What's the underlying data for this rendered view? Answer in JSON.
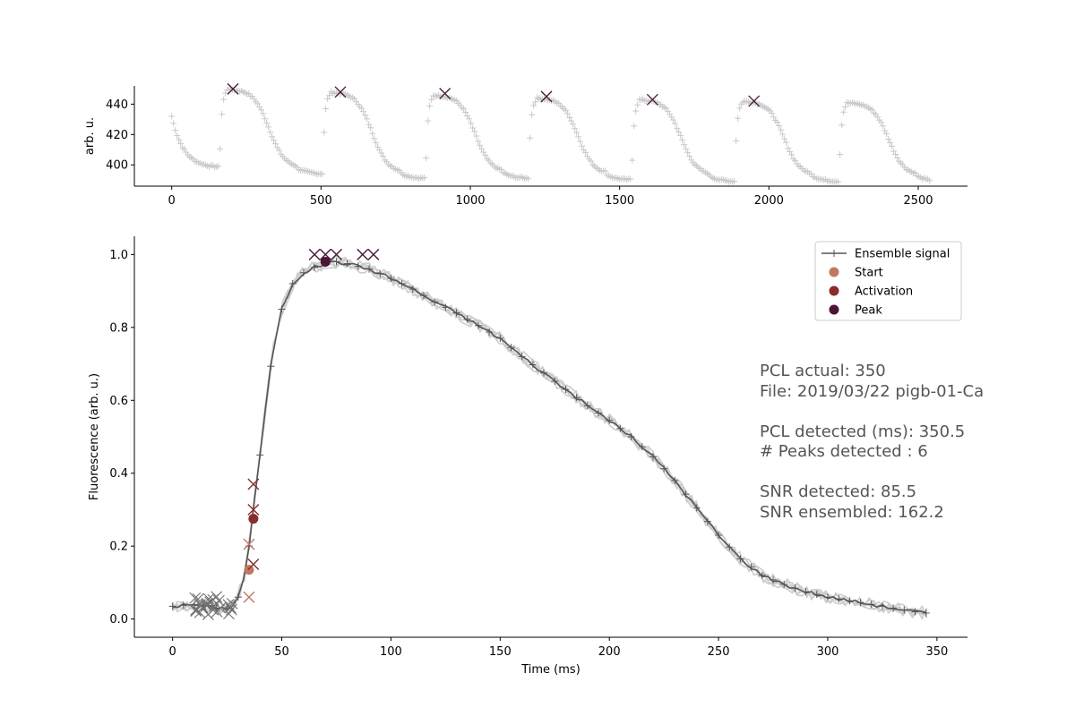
{
  "chart_data": [
    {
      "type": "line",
      "title": "",
      "xlabel": "",
      "ylabel": "arb. u.",
      "xlim": [
        -125,
        2665
      ],
      "ylim": [
        386,
        452
      ],
      "x_ticks": [
        0,
        500,
        1000,
        1500,
        2000,
        2500
      ],
      "x_tick_labels": [
        "0",
        "500",
        "1000",
        "1500",
        "2000",
        "2500"
      ],
      "y_ticks": [
        400,
        420,
        440
      ],
      "y_tick_labels": [
        "400",
        "420",
        "440"
      ],
      "grid": false,
      "pcl_ms": 350,
      "pulse_onsets_ms": [
        160,
        505,
        850,
        1195,
        1540,
        1885,
        2235
      ],
      "baseline_levels": [
        398,
        394,
        391,
        391,
        390,
        389,
        389
      ],
      "peak_levels": [
        450,
        448,
        446,
        444,
        443,
        442,
        441
      ],
      "signal_range_ms": [
        0,
        2540
      ],
      "series": [
        {
          "values_role": "raw-signal",
          "color": "#c8c8c8",
          "marker": "+"
        },
        {
          "values_role": "detected-peaks",
          "color": "#4a1538",
          "marker": "x",
          "x": [
            205,
            565,
            915,
            1255,
            1610,
            1950
          ],
          "y": [
            450,
            448,
            447,
            445,
            443,
            442
          ]
        }
      ]
    },
    {
      "type": "line",
      "title": "",
      "xlabel": "Time (ms)",
      "ylabel": "Fluorescence (arb. u.)",
      "xlim": [
        -17.5,
        364
      ],
      "ylim": [
        -0.05,
        1.05
      ],
      "x_ticks": [
        0,
        50,
        100,
        150,
        200,
        250,
        300,
        350
      ],
      "x_tick_labels": [
        "0",
        "50",
        "100",
        "150",
        "200",
        "250",
        "300",
        "350"
      ],
      "y_ticks": [
        0.0,
        0.2,
        0.4,
        0.6,
        0.8,
        1.0
      ],
      "y_tick_labels": [
        "0.0",
        "0.2",
        "0.4",
        "0.6",
        "0.8",
        "1.0"
      ],
      "grid": false,
      "legend_position": "top-right",
      "ensemble_signal": {
        "name": "Ensemble signal",
        "color": "#555555",
        "x": [
          0,
          10,
          20,
          25,
          28,
          30,
          33,
          35,
          37,
          40,
          43,
          46,
          50,
          55,
          60,
          65,
          70,
          75,
          80,
          90,
          100,
          110,
          120,
          130,
          140,
          150,
          160,
          170,
          180,
          190,
          200,
          210,
          220,
          230,
          240,
          250,
          260,
          270,
          280,
          290,
          300,
          310,
          320,
          330,
          340,
          347
        ],
        "y": [
          0.035,
          0.04,
          0.03,
          0.03,
          0.04,
          0.06,
          0.12,
          0.2,
          0.3,
          0.45,
          0.6,
          0.74,
          0.85,
          0.92,
          0.95,
          0.965,
          0.975,
          0.98,
          0.975,
          0.96,
          0.935,
          0.905,
          0.87,
          0.84,
          0.805,
          0.77,
          0.72,
          0.675,
          0.63,
          0.585,
          0.545,
          0.5,
          0.445,
          0.38,
          0.305,
          0.23,
          0.165,
          0.12,
          0.095,
          0.075,
          0.06,
          0.05,
          0.04,
          0.03,
          0.02,
          0.015
        ]
      },
      "ensemble_markers_x": [
        0,
        5,
        10,
        15,
        20,
        25,
        30,
        35,
        40,
        45,
        50,
        55,
        60,
        65,
        70,
        75,
        80,
        85,
        90,
        95,
        100,
        105,
        110,
        115,
        120,
        125,
        130,
        135,
        140,
        145,
        150,
        155,
        160,
        165,
        170,
        175,
        180,
        185,
        190,
        195,
        200,
        205,
        210,
        215,
        220,
        225,
        230,
        235,
        240,
        245,
        250,
        255,
        260,
        265,
        270,
        275,
        280,
        285,
        290,
        295,
        300,
        305,
        310,
        315,
        320,
        325,
        330,
        335,
        340,
        345
      ],
      "noise_traces": 5,
      "markers": [
        {
          "name": "Start",
          "color": "#c07860",
          "x": 35,
          "y": 0.135,
          "crosses": [
            [
              35,
              0.205
            ],
            [
              35,
              0.06
            ]
          ]
        },
        {
          "name": "Activation",
          "color": "#8b2b2b",
          "x": 37,
          "y": 0.275,
          "crosses": [
            [
              37,
              0.37
            ],
            [
              37,
              0.3
            ],
            [
              37,
              0.15
            ]
          ]
        },
        {
          "name": "Peak",
          "color": "#4a1538",
          "x": 70,
          "y": 0.98,
          "crosses": [
            [
              65,
              1.0
            ],
            [
              70,
              1.0
            ],
            [
              75,
              1.0
            ],
            [
              87,
              1.0
            ],
            [
              92,
              1.0
            ]
          ]
        }
      ],
      "baseline_crosses_x_range": [
        10,
        28
      ],
      "baseline_crosses_color": "#707070"
    }
  ],
  "legend": {
    "items": [
      {
        "label": "Ensemble signal",
        "color": "#555555",
        "kind": "line"
      },
      {
        "label": "Start",
        "color": "#c07860",
        "kind": "dot"
      },
      {
        "label": "Activation",
        "color": "#8b2b2b",
        "kind": "dot"
      },
      {
        "label": "Peak",
        "color": "#4a1538",
        "kind": "dot"
      }
    ]
  },
  "info": {
    "pcl_actual": "PCL actual: 350",
    "file": "File: 2019/03/22 pigb-01-Ca",
    "pcl_detected": "PCL detected (ms): 350.5",
    "peaks_detected": "# Peaks detected : 6",
    "snr_detected": "SNR detected: 85.5",
    "snr_ensembled": "SNR ensembled: 162.2"
  }
}
